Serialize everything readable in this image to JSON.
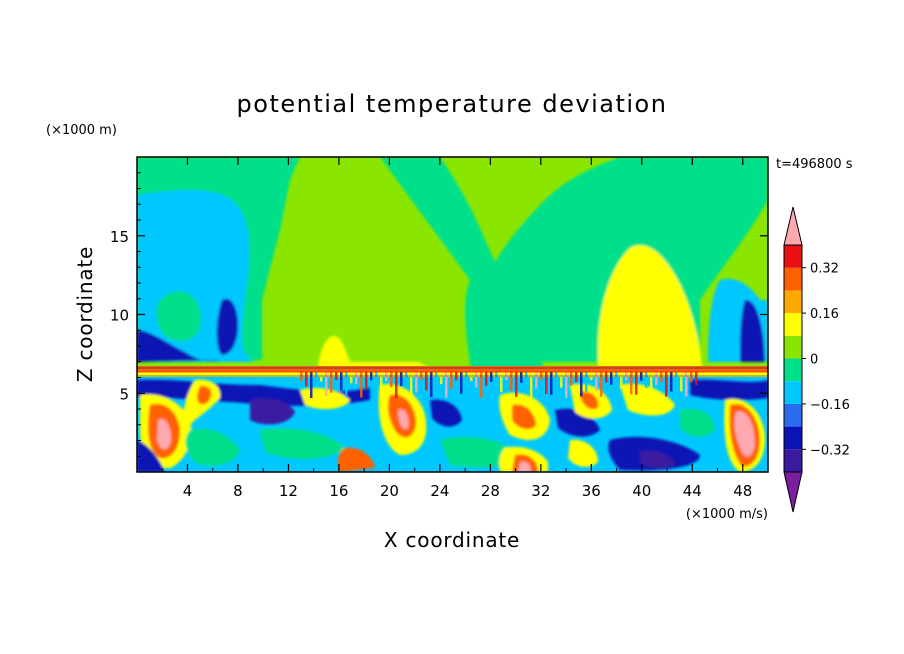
{
  "chart_data": {
    "type": "heatmap",
    "title": "potential temperature deviation",
    "xlabel": "X coordinate",
    "ylabel": "Z coordinate",
    "x_unit": "(×1000 m/s)",
    "y_unit": "(×1000 m)",
    "time_label": "t=496800 s",
    "xlim": [
      0,
      50
    ],
    "ylim": [
      0,
      20
    ],
    "x_ticks": [
      4,
      8,
      12,
      16,
      20,
      24,
      28,
      32,
      36,
      40,
      44,
      48
    ],
    "y_ticks": [
      5,
      10,
      15
    ],
    "colorbar": {
      "levels": [
        -0.4,
        -0.32,
        -0.24,
        -0.16,
        -0.08,
        0,
        0.08,
        0.16,
        0.24,
        0.32,
        0.4
      ],
      "tick_labels": [
        "−0.32",
        "−0.16",
        "0",
        "0.16",
        "0.32"
      ],
      "tick_values": [
        -0.32,
        -0.16,
        0,
        0.16,
        0.32
      ],
      "colors": [
        "#7a1fa2",
        "#3b1aa0",
        "#0a14b4",
        "#2a6cf0",
        "#00c8ff",
        "#00e08a",
        "#8ae600",
        "#ffff00",
        "#ffaa00",
        "#ff6000",
        "#e81010",
        "#ffa8b0"
      ],
      "extend": "both"
    },
    "colors_named": {
      "strong_negative": "#3b1aa0",
      "negative": "#0a14b4",
      "weak_negative": "#00c8ff",
      "near_zero_negative": "#00e08a",
      "near_zero_positive": "#8ae600",
      "positive": "#ffff00",
      "strong_positive": "#ff6000",
      "extreme_positive": "#ffa8b0"
    }
  }
}
